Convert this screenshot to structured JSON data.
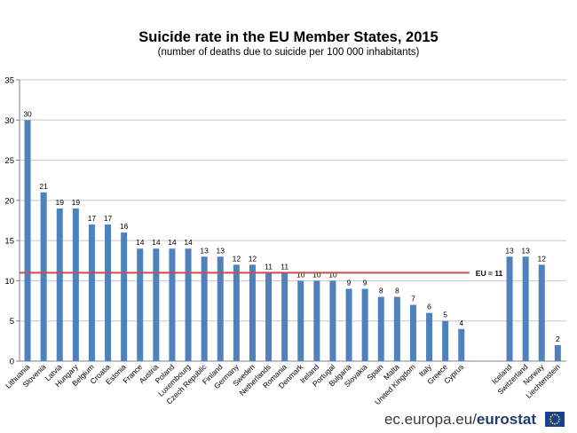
{
  "chart_data": {
    "type": "bar",
    "title": "Suicide rate in the EU Member States,  2015",
    "subtitle": "(number of deaths due to suicide per 100 000 inhabitants)",
    "ylim": [
      0,
      35
    ],
    "yticks": [
      0,
      5,
      10,
      15,
      20,
      25,
      30,
      35
    ],
    "grid": true,
    "bar_color": "#4f81bd",
    "groups": [
      {
        "categories": [
          "Lithuania",
          "Slovenia",
          "Latvia",
          "Hungary",
          "Belgium",
          "Croatia",
          "Estonia",
          "France",
          "Austria",
          "Poland",
          "Luxembourg",
          "Czech Republic",
          "Finland",
          "Germany",
          "Sweden",
          "Netherlands",
          "Romania",
          "Denmark",
          "Ireland",
          "Portugal",
          "Bulgaria",
          "Slovakia",
          "Spain",
          "Malta",
          "United Kingdom",
          "Italy",
          "Greece",
          "Cyprus"
        ],
        "values": [
          30,
          21,
          19,
          19,
          17,
          17,
          16,
          14,
          14,
          14,
          14,
          13,
          13,
          12,
          12,
          11,
          11,
          10,
          10,
          10,
          9,
          9,
          8,
          8,
          7,
          6,
          5,
          4
        ]
      },
      {
        "categories": [
          "Iceland",
          "Switzerland",
          "Norway",
          "Liechtenstein"
        ],
        "values": [
          13,
          13,
          12,
          2
        ]
      }
    ],
    "reference_line": {
      "label": "EU = 11",
      "value": 11,
      "color": "#c0504d"
    }
  },
  "footer": {
    "site": "ec.europa.eu/",
    "brand": "eurostat"
  }
}
